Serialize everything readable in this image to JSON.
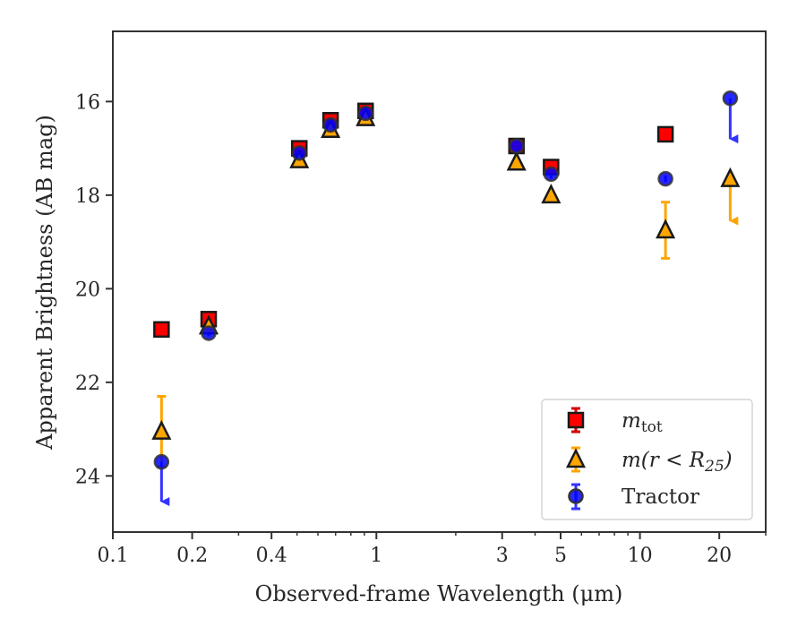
{
  "chart_data": {
    "type": "scatter",
    "xlabel": "Observed-frame Wavelength (μm)",
    "ylabel": "Apparent Brightness (AB mag)",
    "x_scale": "log",
    "y_inverted": true,
    "xlim": [
      0.1,
      30
    ],
    "ylim": [
      25.2,
      14.5
    ],
    "x_ticks": [
      0.1,
      0.2,
      0.4,
      1,
      3,
      5,
      10,
      20
    ],
    "x_tick_labels": [
      "0.1",
      "0.2",
      "0.4",
      "1",
      "3",
      "5",
      "10",
      "20"
    ],
    "y_ticks": [
      16,
      18,
      20,
      22,
      24
    ],
    "y_tick_labels": [
      "16",
      "18",
      "20",
      "22",
      "24"
    ],
    "grid": false,
    "legend_position": "bottom-right",
    "series": [
      {
        "name": "m_tot",
        "legend_label_main": "m",
        "legend_label_sub": "tot",
        "marker": "square",
        "color": "#ff0000",
        "edge_color": "#1a1a1a",
        "error_color": "#d40000",
        "points": [
          {
            "x": 0.153,
            "y": 20.87,
            "err": 0.05
          },
          {
            "x": 0.231,
            "y": 20.65,
            "err": 0.05
          },
          {
            "x": 0.51,
            "y": 17.0,
            "err": 0.05
          },
          {
            "x": 0.67,
            "y": 16.4,
            "err": 0.05
          },
          {
            "x": 0.91,
            "y": 16.2,
            "err": 0.05
          },
          {
            "x": 3.4,
            "y": 16.95,
            "err": 0.05
          },
          {
            "x": 4.6,
            "y": 17.4,
            "err": 0.08
          },
          {
            "x": 12.5,
            "y": 16.7,
            "err": 0.05
          }
        ]
      },
      {
        "name": "m(r < R_25)",
        "legend_label_main": "m(r < R",
        "legend_label_sub": "25",
        "legend_label_end": ")",
        "marker": "triangle",
        "color": "#ffa500",
        "edge_color": "#1a1a1a",
        "error_color": "#ffa500",
        "points": [
          {
            "x": 0.153,
            "y": 23.05,
            "err": 0.75
          },
          {
            "x": 0.231,
            "y": 20.8,
            "err": 0.05
          },
          {
            "x": 0.51,
            "y": 17.25,
            "err": 0.05
          },
          {
            "x": 0.67,
            "y": 16.6,
            "err": 0.05
          },
          {
            "x": 0.91,
            "y": 16.35,
            "err": 0.05
          },
          {
            "x": 3.4,
            "y": 17.3,
            "err": 0.05
          },
          {
            "x": 4.6,
            "y": 18.0,
            "err": 0.05
          },
          {
            "x": 12.5,
            "y": 18.75,
            "err": 0.6
          },
          {
            "x": 22.0,
            "y": 17.65,
            "err": 0,
            "upper_limit": true,
            "arrow_to": 18.55
          }
        ]
      },
      {
        "name": "Tractor",
        "marker": "circle",
        "color": "#0000ff",
        "edge_color": "#333333",
        "error_color": "#3333ff",
        "points": [
          {
            "x": 0.153,
            "y": 23.7,
            "err": 0,
            "upper_limit": true,
            "arrow_to": 24.55
          },
          {
            "x": 0.231,
            "y": 20.95,
            "err": 0.05
          },
          {
            "x": 0.51,
            "y": 17.1,
            "err": 0.05
          },
          {
            "x": 0.67,
            "y": 16.5,
            "err": 0.05
          },
          {
            "x": 0.91,
            "y": 16.25,
            "err": 0.05
          },
          {
            "x": 3.4,
            "y": 16.95,
            "err": 0.05
          },
          {
            "x": 4.6,
            "y": 17.55,
            "err": 0.08
          },
          {
            "x": 12.5,
            "y": 17.65,
            "err": 0.05
          },
          {
            "x": 22.0,
            "y": 15.93,
            "err": 0,
            "upper_limit": true,
            "arrow_to": 16.8
          }
        ]
      }
    ],
    "legend_entries": [
      "m_tot",
      "m(r < R_25)",
      "Tractor"
    ]
  }
}
